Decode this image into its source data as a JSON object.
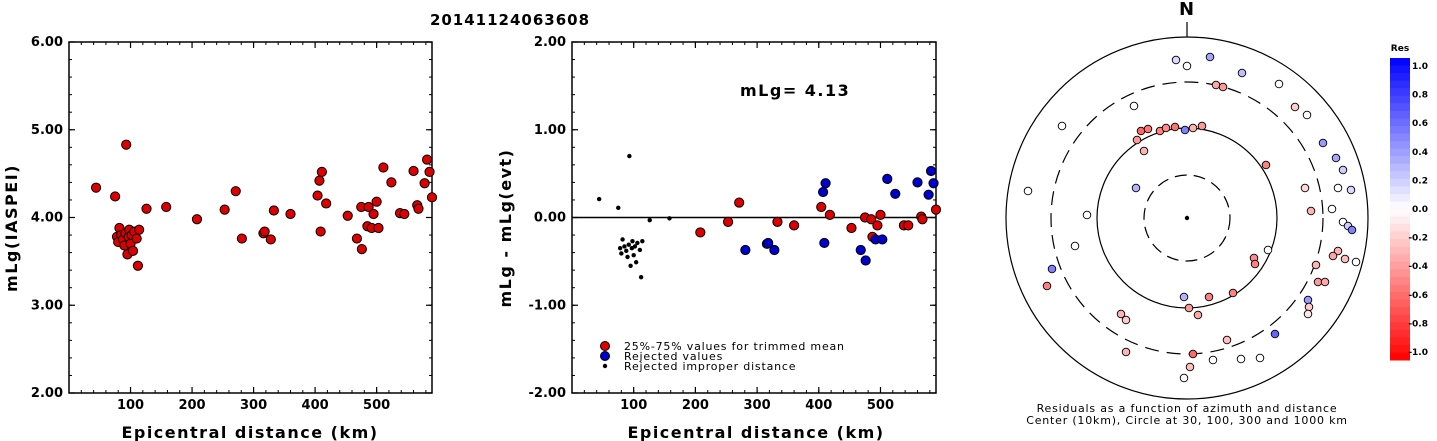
{
  "page_title": "20141124063608",
  "chart_data": [
    {
      "type": "scatter",
      "xlabel": "Epicentral distance (km)",
      "ylabel": "mLg(IASPEI)",
      "xlim": [
        0,
        590
      ],
      "ylim": [
        2.0,
        6.0
      ],
      "x_ticks": [
        "100",
        "200",
        "300",
        "400",
        "500"
      ],
      "y_ticks": [
        "2.00",
        "3.00",
        "4.00",
        "5.00",
        "6.00"
      ],
      "points": [
        [
          44,
          4.34
        ],
        [
          75,
          4.24
        ],
        [
          78,
          3.78
        ],
        [
          80,
          3.72
        ],
        [
          82,
          3.88
        ],
        [
          85,
          3.8
        ],
        [
          88,
          3.75
        ],
        [
          90,
          3.68
        ],
        [
          92,
          3.82
        ],
        [
          93,
          4.83
        ],
        [
          95,
          3.58
        ],
        [
          97,
          3.78
        ],
        [
          98,
          3.86
        ],
        [
          100,
          3.7
        ],
        [
          102,
          3.8
        ],
        [
          104,
          3.62
        ],
        [
          106,
          3.84
        ],
        [
          110,
          3.76
        ],
        [
          112,
          3.45
        ],
        [
          114,
          3.86
        ],
        [
          126,
          4.1
        ],
        [
          158,
          4.12
        ],
        [
          208,
          3.98
        ],
        [
          253,
          4.09
        ],
        [
          271,
          4.3
        ],
        [
          281,
          3.76
        ],
        [
          316,
          3.82
        ],
        [
          318,
          3.84
        ],
        [
          328,
          3.75
        ],
        [
          333,
          4.08
        ],
        [
          360,
          4.04
        ],
        [
          404,
          4.25
        ],
        [
          407,
          4.42
        ],
        [
          409,
          3.84
        ],
        [
          411,
          4.52
        ],
        [
          418,
          4.16
        ],
        [
          453,
          4.02
        ],
        [
          468,
          3.76
        ],
        [
          475,
          4.12
        ],
        [
          476,
          3.64
        ],
        [
          485,
          3.9
        ],
        [
          487,
          4.12
        ],
        [
          492,
          3.88
        ],
        [
          495,
          4.04
        ],
        [
          500,
          4.18
        ],
        [
          503,
          3.88
        ],
        [
          511,
          4.57
        ],
        [
          524,
          4.4
        ],
        [
          538,
          4.05
        ],
        [
          545,
          4.04
        ],
        [
          560,
          4.53
        ],
        [
          566,
          4.14
        ],
        [
          568,
          4.1
        ],
        [
          578,
          4.39
        ],
        [
          582,
          4.66
        ],
        [
          586,
          4.52
        ],
        [
          590,
          4.23
        ]
      ]
    },
    {
      "type": "scatter",
      "xlabel": "Epicentral distance (km)",
      "ylabel": "mLg - mLg(evt)",
      "xlim": [
        0,
        590
      ],
      "ylim": [
        -2.0,
        2.0
      ],
      "x_ticks": [
        "100",
        "200",
        "300",
        "400",
        "500"
      ],
      "y_ticks": [
        "-2.00",
        "-1.00",
        "0.00",
        "1.00",
        "2.00"
      ],
      "annotation": "mLg= 4.13",
      "reference_line": 0.0,
      "legend": [
        "25%-75% values for trimmed mean",
        "Rejected values",
        "Rejected improper distance"
      ],
      "series": [
        {
          "name": "25%-75% values for trimmed mean",
          "color": "#dd0000",
          "points": [
            [
              208,
              -0.17
            ],
            [
              253,
              -0.05
            ],
            [
              271,
              0.17
            ],
            [
              333,
              -0.05
            ],
            [
              360,
              -0.09
            ],
            [
              404,
              0.12
            ],
            [
              418,
              0.03
            ],
            [
              453,
              -0.12
            ],
            [
              475,
              0.0
            ],
            [
              485,
              -0.02
            ],
            [
              487,
              -0.22
            ],
            [
              495,
              -0.09
            ],
            [
              500,
              0.03
            ],
            [
              538,
              -0.09
            ],
            [
              545,
              -0.09
            ],
            [
              566,
              0.01
            ],
            [
              568,
              -0.02
            ],
            [
              590,
              0.09
            ]
          ]
        },
        {
          "name": "Rejected values",
          "color": "#0000cc",
          "points": [
            [
              281,
              -0.37
            ],
            [
              316,
              -0.3
            ],
            [
              318,
              -0.29
            ],
            [
              328,
              -0.37
            ],
            [
              407,
              0.29
            ],
            [
              409,
              -0.29
            ],
            [
              411,
              0.39
            ],
            [
              468,
              -0.37
            ],
            [
              476,
              -0.49
            ],
            [
              492,
              -0.25
            ],
            [
              503,
              -0.25
            ],
            [
              511,
              0.44
            ],
            [
              524,
              0.27
            ],
            [
              560,
              0.4
            ],
            [
              578,
              0.26
            ],
            [
              582,
              0.53
            ],
            [
              586,
              0.39
            ]
          ]
        },
        {
          "name": "Rejected improper distance",
          "color": "#000000",
          "points": [
            [
              44,
              0.21
            ],
            [
              75,
              0.11
            ],
            [
              78,
              -0.35
            ],
            [
              80,
              -0.41
            ],
            [
              82,
              -0.25
            ],
            [
              85,
              -0.33
            ],
            [
              88,
              -0.38
            ],
            [
              90,
              -0.45
            ],
            [
              92,
              -0.31
            ],
            [
              93,
              0.7
            ],
            [
              95,
              -0.55
            ],
            [
              97,
              -0.35
            ],
            [
              98,
              -0.27
            ],
            [
              100,
              -0.43
            ],
            [
              102,
              -0.33
            ],
            [
              104,
              -0.51
            ],
            [
              106,
              -0.29
            ],
            [
              110,
              -0.37
            ],
            [
              112,
              -0.68
            ],
            [
              114,
              -0.27
            ],
            [
              126,
              -0.03
            ],
            [
              158,
              -0.01
            ]
          ]
        }
      ]
    },
    {
      "type": "polar-scatter",
      "north_label": "N",
      "caption_line1": "Residuals as a function of azimuth and distance",
      "caption_line2": "Center (10km), Circle at 30, 100, 300 and 1000 km",
      "colorbar_title": "Res",
      "colorbar_ticks": [
        "1.0",
        "0.8",
        "0.6",
        "0.4",
        "0.2",
        "0.0",
        "-0.2",
        "-0.4",
        "-0.6",
        "-0.8",
        "-1.0"
      ],
      "points": [
        [
          1210,
          57,
          0.35
        ],
        [
          1187,
          66,
          0.0
        ],
        [
          1176,
          60,
          0.15
        ],
        [
          1216,
          85,
          -0.35
        ],
        [
          1223,
          87,
          -0.4
        ],
        [
          1242,
          73,
          0.25
        ],
        [
          1279,
          84,
          0.0
        ],
        [
          1295,
          107,
          -0.2
        ],
        [
          1307,
          115,
          0.0
        ],
        [
          1134,
          106,
          0.0
        ],
        [
          1062,
          126,
          0.0
        ],
        [
          1141,
          131,
          -0.6
        ],
        [
          1148,
          129,
          -0.55
        ],
        [
          1160,
          131,
          -0.5
        ],
        [
          1166,
          128,
          -0.45
        ],
        [
          1175,
          127,
          -0.55
        ],
        [
          1185,
          130,
          0.5
        ],
        [
          1193,
          128,
          -0.3
        ],
        [
          1202,
          126,
          -0.4
        ],
        [
          1137,
          140,
          -0.4
        ],
        [
          1144,
          151,
          -0.3
        ],
        [
          1266,
          165,
          -0.5
        ],
        [
          1323,
          143,
          0.4
        ],
        [
          1336,
          158,
          0.35
        ],
        [
          1343,
          170,
          0.2
        ],
        [
          1338,
          188,
          0.0
        ],
        [
          1351,
          190,
          0.15
        ],
        [
          1028,
          191,
          0.0
        ],
        [
          1136,
          188,
          0.3
        ],
        [
          1087,
          215,
          0.0
        ],
        [
          1305,
          188,
          -0.15
        ],
        [
          1311,
          211,
          -0.3
        ],
        [
          1332,
          209,
          0.0
        ],
        [
          1343,
          222,
          0.0
        ],
        [
          1348,
          226,
          0.2
        ],
        [
          1352,
          230,
          0.5
        ],
        [
          1338,
          251,
          -0.3
        ],
        [
          1345,
          259,
          -0.25
        ],
        [
          1333,
          256,
          -0.35
        ],
        [
          1316,
          265,
          -0.3
        ],
        [
          1356,
          262,
          0.0
        ],
        [
          1268,
          250,
          0.0
        ],
        [
          1254,
          258,
          -0.45
        ],
        [
          1255,
          264,
          -0.5
        ],
        [
          1075,
          246,
          0.0
        ],
        [
          1052,
          269,
          0.5
        ],
        [
          1047,
          286,
          -0.5
        ],
        [
          1318,
          282,
          -0.4
        ],
        [
          1325,
          282,
          -0.35
        ],
        [
          1184,
          297,
          0.3
        ],
        [
          1189,
          308,
          -0.4
        ],
        [
          1198,
          315,
          -0.35
        ],
        [
          1209,
          297,
          -0.5
        ],
        [
          1233,
          293,
          -0.5
        ],
        [
          1308,
          300,
          0.4
        ],
        [
          1309,
          307,
          -0.2
        ],
        [
          1308,
          314,
          -0.1
        ],
        [
          1121,
          314,
          -0.3
        ],
        [
          1126,
          320,
          -0.2
        ],
        [
          1275,
          334,
          0.6
        ],
        [
          1227,
          340,
          -0.25
        ],
        [
          1126,
          352,
          -0.3
        ],
        [
          1193,
          354,
          -0.6
        ],
        [
          1213,
          360,
          0.0
        ],
        [
          1241,
          359,
          0.0
        ],
        [
          1260,
          358,
          0.0
        ],
        [
          1190,
          367,
          -0.25
        ],
        [
          1184,
          378,
          0.0
        ]
      ]
    }
  ]
}
